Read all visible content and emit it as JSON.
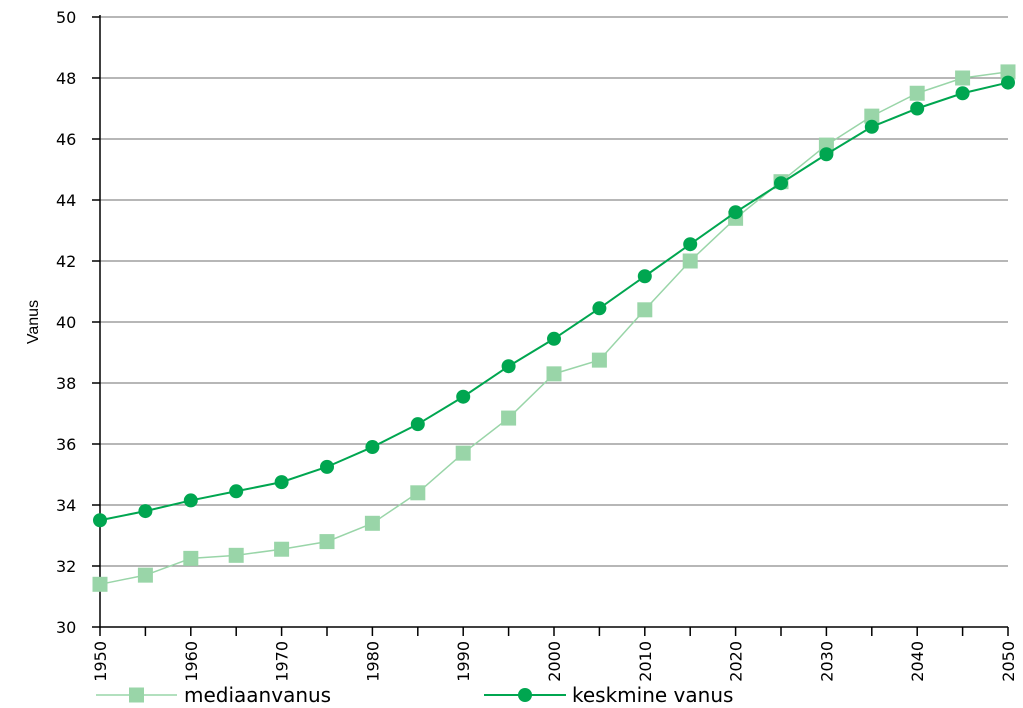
{
  "chart_data": {
    "type": "line",
    "title": "",
    "xlabel": "",
    "ylabel": "Vanus",
    "x": [
      1950,
      1955,
      1960,
      1965,
      1970,
      1975,
      1980,
      1985,
      1990,
      1995,
      2000,
      2005,
      2010,
      2015,
      2020,
      2025,
      2030,
      2035,
      2040,
      2045,
      2050
    ],
    "x_tick_labels": [
      "1950",
      "1960",
      "1970",
      "1980",
      "1990",
      "2000",
      "2010",
      "2020",
      "2030",
      "2040",
      "2050"
    ],
    "x_tick_values": [
      1950,
      1960,
      1970,
      1980,
      1990,
      2000,
      2010,
      2020,
      2030,
      2040,
      2050
    ],
    "ylim": [
      30,
      50
    ],
    "y_ticks": [
      30,
      32,
      34,
      36,
      38,
      40,
      42,
      44,
      46,
      48,
      50
    ],
    "grid": "horizontal",
    "legend_position": "bottom",
    "series": [
      {
        "name": "mediaanvanus",
        "color": "#99d5a8",
        "marker": "square",
        "values": [
          31.4,
          31.7,
          32.25,
          32.35,
          32.55,
          32.8,
          33.4,
          34.4,
          35.7,
          36.85,
          38.3,
          38.75,
          40.4,
          42.0,
          43.4,
          44.6,
          45.8,
          46.75,
          47.5,
          48.0,
          48.2
        ]
      },
      {
        "name": "keskmine vanus",
        "color": "#00a650",
        "marker": "circle",
        "values": [
          33.5,
          33.8,
          34.15,
          34.45,
          34.75,
          35.25,
          35.9,
          36.65,
          37.55,
          38.55,
          39.45,
          40.45,
          41.5,
          42.55,
          43.6,
          44.55,
          45.5,
          46.4,
          47.0,
          47.5,
          47.85
        ]
      }
    ]
  }
}
